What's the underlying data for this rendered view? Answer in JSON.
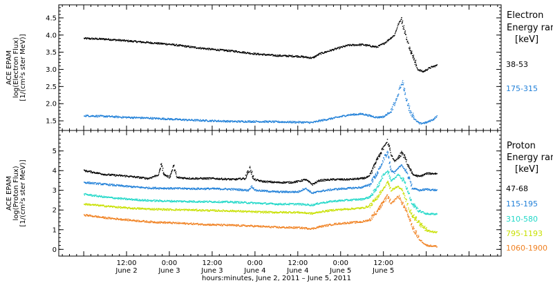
{
  "chart_data": [
    {
      "type": "scatter",
      "ylabel_lines": [
        "ACE EPAM",
        "log(Electron Flux)",
        "[1/(cm²s ster MeV)]"
      ],
      "ylim": [
        1.3,
        4.8
      ],
      "yticks": [
        1.5,
        2.0,
        2.5,
        3.0,
        3.5,
        4.0,
        4.5
      ],
      "ytick_labels": [
        "1.5",
        "2.0",
        "2.5",
        "3.0",
        "3.5",
        "4.0",
        "4.5"
      ],
      "legend_title": [
        "Electron",
        "Energy ran",
        "[keV]"
      ],
      "series": [
        {
          "name": "38-53",
          "color": "#000000",
          "points": [
            [
              0,
              3.9
            ],
            [
              6,
              3.88
            ],
            [
              12,
              3.83
            ],
            [
              18,
              3.78
            ],
            [
              24,
              3.73
            ],
            [
              30,
              3.65
            ],
            [
              36,
              3.58
            ],
            [
              42,
              3.53
            ],
            [
              48,
              3.45
            ],
            [
              54,
              3.4
            ],
            [
              60,
              3.38
            ],
            [
              64,
              3.33
            ],
            [
              66,
              3.45
            ],
            [
              70,
              3.58
            ],
            [
              74,
              3.7
            ],
            [
              78,
              3.72
            ],
            [
              82,
              3.65
            ],
            [
              84,
              3.75
            ],
            [
              87,
              4.0
            ],
            [
              88,
              4.3
            ],
            [
              88.8,
              4.45
            ],
            [
              89.8,
              4.1
            ],
            [
              90.8,
              3.75
            ],
            [
              92,
              3.4
            ],
            [
              93.5,
              3.0
            ],
            [
              95,
              2.93
            ],
            [
              97,
              3.05
            ],
            [
              99,
              3.12
            ]
          ]
        },
        {
          "name": "175-315",
          "color": "#1f7fd8",
          "points": [
            [
              0,
              1.65
            ],
            [
              6,
              1.63
            ],
            [
              12,
              1.6
            ],
            [
              18,
              1.58
            ],
            [
              24,
              1.55
            ],
            [
              30,
              1.52
            ],
            [
              36,
              1.5
            ],
            [
              42,
              1.48
            ],
            [
              48,
              1.48
            ],
            [
              54,
              1.47
            ],
            [
              60,
              1.46
            ],
            [
              64,
              1.45
            ],
            [
              66,
              1.5
            ],
            [
              70,
              1.58
            ],
            [
              74,
              1.67
            ],
            [
              78,
              1.7
            ],
            [
              82,
              1.6
            ],
            [
              84,
              1.62
            ],
            [
              86,
              1.78
            ],
            [
              87.5,
              2.1
            ],
            [
              88.5,
              2.45
            ],
            [
              89.2,
              2.6
            ],
            [
              90,
              2.25
            ],
            [
              91,
              1.85
            ],
            [
              92.5,
              1.55
            ],
            [
              94,
              1.42
            ],
            [
              96,
              1.45
            ],
            [
              98,
              1.55
            ],
            [
              99,
              1.65
            ]
          ]
        }
      ]
    },
    {
      "type": "scatter",
      "ylabel_lines": [
        "ACE EPAM",
        "log(Proton Flux)",
        "[1/(cm²s ster MeV)]"
      ],
      "ylim": [
        -0.2,
        5.9
      ],
      "yticks": [
        0,
        1,
        2,
        3,
        4,
        5
      ],
      "ytick_labels": [
        "0",
        "1",
        "2",
        "3",
        "4",
        "5"
      ],
      "legend_title": [
        "Proton",
        "Energy ran",
        "[keV]"
      ],
      "series": [
        {
          "name": "47-68",
          "color": "#000000",
          "points": [
            [
              0,
              4.0
            ],
            [
              6,
              3.8
            ],
            [
              12,
              3.72
            ],
            [
              18,
              3.6
            ],
            [
              21,
              3.8
            ],
            [
              21.6,
              4.35
            ],
            [
              22.4,
              3.8
            ],
            [
              24,
              3.65
            ],
            [
              25,
              4.2
            ],
            [
              26,
              3.65
            ],
            [
              30,
              3.6
            ],
            [
              36,
              3.6
            ],
            [
              42,
              3.55
            ],
            [
              45,
              3.6
            ],
            [
              46.5,
              4.1
            ],
            [
              47.5,
              3.55
            ],
            [
              50,
              3.45
            ],
            [
              54,
              3.4
            ],
            [
              58,
              3.4
            ],
            [
              60,
              3.45
            ],
            [
              62,
              3.55
            ],
            [
              64,
              3.3
            ],
            [
              66,
              3.5
            ],
            [
              70,
              3.55
            ],
            [
              74,
              3.55
            ],
            [
              78,
              3.6
            ],
            [
              80,
              3.7
            ],
            [
              82,
              4.5
            ],
            [
              84,
              5.2
            ],
            [
              85,
              5.5
            ],
            [
              86,
              4.8
            ],
            [
              87,
              4.5
            ],
            [
              88,
              4.6
            ],
            [
              89,
              4.9
            ],
            [
              90,
              4.6
            ],
            [
              91,
              4.2
            ],
            [
              92,
              3.8
            ],
            [
              94,
              3.7
            ],
            [
              96,
              3.85
            ],
            [
              99,
              3.85
            ]
          ]
        },
        {
          "name": "115-195",
          "color": "#1f7fd8",
          "points": [
            [
              0,
              3.4
            ],
            [
              6,
              3.3
            ],
            [
              12,
              3.2
            ],
            [
              18,
              3.12
            ],
            [
              24,
              3.1
            ],
            [
              30,
              3.08
            ],
            [
              36,
              3.08
            ],
            [
              42,
              3.05
            ],
            [
              46,
              3.0
            ],
            [
              47,
              3.2
            ],
            [
              48,
              3.0
            ],
            [
              54,
              2.92
            ],
            [
              60,
              2.92
            ],
            [
              62,
              3.1
            ],
            [
              64,
              2.85
            ],
            [
              66,
              2.95
            ],
            [
              70,
              3.05
            ],
            [
              74,
              3.1
            ],
            [
              78,
              3.15
            ],
            [
              80,
              3.3
            ],
            [
              82,
              3.8
            ],
            [
              84,
              4.6
            ],
            [
              85,
              4.9
            ],
            [
              86,
              4.0
            ],
            [
              87,
              3.9
            ],
            [
              88,
              4.1
            ],
            [
              89,
              4.3
            ],
            [
              90,
              4.0
            ],
            [
              91,
              3.6
            ],
            [
              92,
              3.1
            ],
            [
              94,
              3.0
            ],
            [
              96,
              3.05
            ],
            [
              99,
              3.0
            ]
          ]
        },
        {
          "name": "310-580",
          "color": "#20d8c8",
          "points": [
            [
              0,
              2.8
            ],
            [
              6,
              2.65
            ],
            [
              12,
              2.55
            ],
            [
              18,
              2.48
            ],
            [
              24,
              2.45
            ],
            [
              30,
              2.43
            ],
            [
              36,
              2.42
            ],
            [
              42,
              2.4
            ],
            [
              48,
              2.35
            ],
            [
              54,
              2.3
            ],
            [
              60,
              2.3
            ],
            [
              64,
              2.25
            ],
            [
              66,
              2.35
            ],
            [
              70,
              2.45
            ],
            [
              74,
              2.5
            ],
            [
              78,
              2.55
            ],
            [
              80,
              2.65
            ],
            [
              82,
              3.1
            ],
            [
              84,
              3.8
            ],
            [
              85,
              4.0
            ],
            [
              86,
              3.5
            ],
            [
              87,
              3.6
            ],
            [
              88,
              3.8
            ],
            [
              89,
              3.6
            ],
            [
              90,
              3.3
            ],
            [
              91,
              2.8
            ],
            [
              92,
              2.3
            ],
            [
              94,
              1.95
            ],
            [
              96,
              1.8
            ],
            [
              99,
              1.8
            ]
          ]
        },
        {
          "name": "795-1193",
          "color": "#c8e000",
          "points": [
            [
              0,
              2.3
            ],
            [
              6,
              2.2
            ],
            [
              12,
              2.1
            ],
            [
              18,
              2.05
            ],
            [
              24,
              2.02
            ],
            [
              30,
              2.0
            ],
            [
              36,
              1.97
            ],
            [
              42,
              1.95
            ],
            [
              48,
              1.9
            ],
            [
              54,
              1.88
            ],
            [
              60,
              1.88
            ],
            [
              64,
              1.82
            ],
            [
              66,
              1.9
            ],
            [
              70,
              2.0
            ],
            [
              74,
              2.05
            ],
            [
              78,
              2.1
            ],
            [
              80,
              2.2
            ],
            [
              82,
              2.6
            ],
            [
              84,
              3.1
            ],
            [
              85,
              3.4
            ],
            [
              86,
              3.0
            ],
            [
              87,
              3.1
            ],
            [
              88,
              3.2
            ],
            [
              89,
              3.0
            ],
            [
              90,
              2.6
            ],
            [
              91,
              2.1
            ],
            [
              92,
              1.7
            ],
            [
              94,
              1.3
            ],
            [
              96,
              0.95
            ],
            [
              99,
              0.85
            ]
          ]
        },
        {
          "name": "1060-1900",
          "color": "#f08020",
          "points": [
            [
              0,
              1.75
            ],
            [
              6,
              1.6
            ],
            [
              12,
              1.5
            ],
            [
              18,
              1.4
            ],
            [
              24,
              1.35
            ],
            [
              30,
              1.3
            ],
            [
              36,
              1.25
            ],
            [
              42,
              1.22
            ],
            [
              48,
              1.18
            ],
            [
              54,
              1.12
            ],
            [
              60,
              1.1
            ],
            [
              64,
              1.05
            ],
            [
              66,
              1.15
            ],
            [
              70,
              1.28
            ],
            [
              74,
              1.35
            ],
            [
              78,
              1.4
            ],
            [
              80,
              1.5
            ],
            [
              82,
              1.9
            ],
            [
              84,
              2.4
            ],
            [
              85,
              2.7
            ],
            [
              86,
              2.3
            ],
            [
              87,
              2.5
            ],
            [
              88,
              2.7
            ],
            [
              89,
              2.4
            ],
            [
              90,
              2.0
            ],
            [
              91,
              1.6
            ],
            [
              92,
              1.1
            ],
            [
              94,
              0.5
            ],
            [
              96,
              0.2
            ],
            [
              99,
              0.15
            ]
          ]
        }
      ]
    }
  ],
  "x_axis": {
    "xlim": [
      -7,
      117
    ],
    "unit": "hours since 2011-06-02 00:00",
    "ticks": [
      {
        "x": 12,
        "time": "12:00",
        "day": "June 2"
      },
      {
        "x": 24,
        "time": "0:00",
        "day": "June 3"
      },
      {
        "x": 36,
        "time": "12:00",
        "day": "June 3"
      },
      {
        "x": 48,
        "time": "0:00",
        "day": "June 4"
      },
      {
        "x": 60,
        "time": "12:00",
        "day": "June 4"
      },
      {
        "x": 72,
        "time": "0:00",
        "day": "June 5"
      },
      {
        "x": 84,
        "time": "12:00",
        "day": "June 5"
      }
    ],
    "label": "hours:minutes,  June  2, 2011 – June  5, 2011"
  }
}
